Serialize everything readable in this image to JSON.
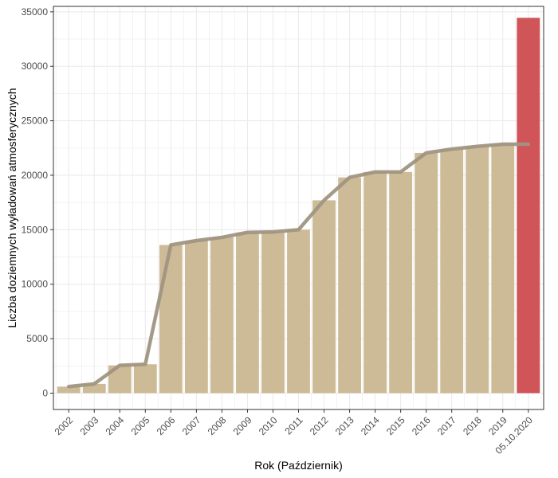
{
  "chart_data": {
    "type": "bar",
    "title": "",
    "xlabel": "Rok (Październik)",
    "ylabel": "Liczba doziemnych wyładowań atmosferycznych",
    "ylim": [
      -1500,
      35500
    ],
    "y_ticks": [
      0,
      5000,
      10000,
      15000,
      20000,
      25000,
      30000,
      35000
    ],
    "categories": [
      "2002",
      "2003",
      "2004",
      "2005",
      "2006",
      "2007",
      "2008",
      "2009",
      "2010",
      "2011",
      "2012",
      "2013",
      "2014",
      "2015",
      "2016",
      "2017",
      "2018",
      "2019",
      "05.10.2020"
    ],
    "values": [
      600,
      850,
      2550,
      2650,
      13600,
      14000,
      14300,
      14750,
      14800,
      15000,
      17700,
      19800,
      20300,
      20300,
      22050,
      22400,
      22650,
      22850,
      34450
    ],
    "line_values": [
      600,
      850,
      2550,
      2650,
      13600,
      14000,
      14300,
      14750,
      14800,
      15000,
      17700,
      19800,
      20300,
      20300,
      22050,
      22400,
      22650,
      22850,
      22850
    ],
    "grid": true,
    "legend": "none",
    "colors": {
      "bar": "#ccbb96",
      "highlight_bar": "#d05558",
      "line": "#a09582",
      "grid": "#ebebeb",
      "panel_border": "#333333"
    }
  }
}
